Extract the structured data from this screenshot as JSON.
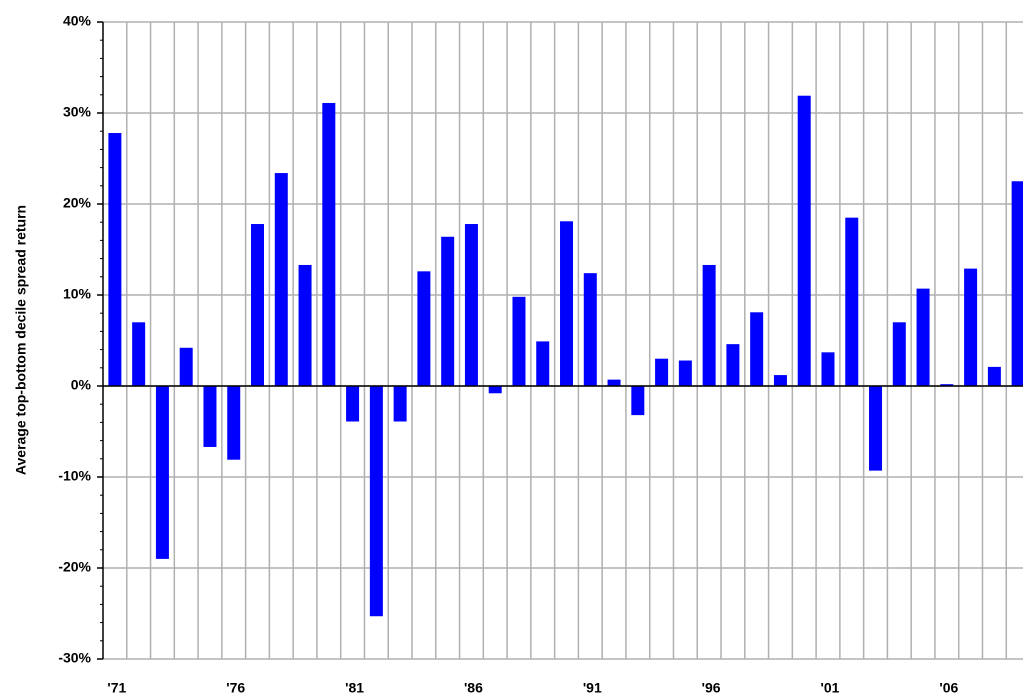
{
  "chart_data": {
    "type": "bar",
    "y_label": "Average top-bottom decile spread return",
    "categories": [
      "'71",
      null,
      null,
      null,
      null,
      "'76",
      null,
      null,
      null,
      null,
      "'81",
      null,
      null,
      null,
      null,
      "'86",
      null,
      null,
      null,
      null,
      "'91",
      null,
      null,
      null,
      null,
      "'96",
      null,
      null,
      null,
      null,
      "'01",
      null,
      null,
      null,
      null,
      "'06",
      null,
      null,
      null
    ],
    "values": [
      27.8,
      7.0,
      -19.0,
      4.2,
      -6.7,
      -8.1,
      17.8,
      23.4,
      13.3,
      31.1,
      -3.9,
      -25.3,
      -3.9,
      12.6,
      16.4,
      17.8,
      -0.8,
      9.8,
      4.9,
      18.1,
      12.4,
      0.7,
      -3.2,
      3.0,
      2.8,
      13.3,
      4.6,
      8.1,
      1.2,
      31.9,
      3.7,
      18.5,
      -9.3,
      7.0,
      10.7,
      0.2,
      12.9,
      2.1,
      22.5
    ],
    "color": "#0000ff",
    "ylim": [
      -30,
      40
    ],
    "yticks": [
      {
        "value": -30,
        "label": "-30%"
      },
      {
        "value": -20,
        "label": "-20%"
      },
      {
        "value": -10,
        "label": "-10%"
      },
      {
        "value": 0,
        "label": "0%"
      },
      {
        "value": 10,
        "label": "10%"
      },
      {
        "value": 20,
        "label": "20%"
      },
      {
        "value": 30,
        "label": "30%"
      },
      {
        "value": 40,
        "label": "40%"
      }
    ],
    "grid": true
  }
}
